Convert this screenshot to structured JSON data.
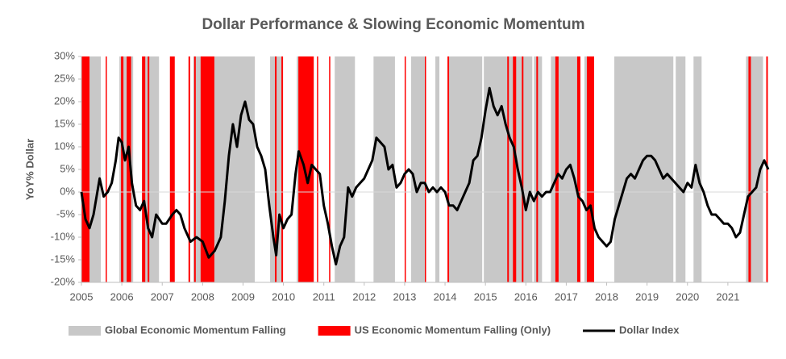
{
  "chart_data": {
    "type": "line",
    "title": "Dollar Performance & Slowing Economic Momentum",
    "y_label": "YoY% Dollar",
    "xlim": [
      2005,
      2022
    ],
    "xticks": [
      2005,
      2006,
      2007,
      2008,
      2009,
      2010,
      2011,
      2012,
      2013,
      2014,
      2015,
      2016,
      2017,
      2018,
      2019,
      2020,
      2021
    ],
    "ylim": [
      -20,
      30
    ],
    "yticks": [
      {
        "value": 30,
        "label": "30%"
      },
      {
        "value": 25,
        "label": "25%"
      },
      {
        "value": 20,
        "label": "20%"
      },
      {
        "value": 15,
        "label": "15%"
      },
      {
        "value": 10,
        "label": "10%"
      },
      {
        "value": 5,
        "label": "5%"
      },
      {
        "value": 0,
        "label": "0%"
      },
      {
        "value": -5,
        "label": "-5%"
      },
      {
        "value": -10,
        "label": "-10%"
      },
      {
        "value": -15,
        "label": "-15%"
      },
      {
        "value": -20,
        "label": "-20%"
      }
    ],
    "bands": [
      {
        "name": "Global Economic Momentum Falling",
        "color": "#c8c8c8",
        "ranges": [
          [
            2005.2,
            2005.48
          ],
          [
            2005.94,
            2006.28
          ],
          [
            2006.5,
            2006.92
          ],
          [
            2007.77,
            2007.97
          ],
          [
            2008.27,
            2009.29
          ],
          [
            2009.67,
            2009.95
          ],
          [
            2010.33,
            2010.75
          ],
          [
            2011.27,
            2011.77
          ],
          [
            2012.23,
            2012.76
          ],
          [
            2013.16,
            2013.5
          ],
          [
            2013.76,
            2013.86
          ],
          [
            2014.08,
            2014.92
          ],
          [
            2014.96,
            2016.16
          ],
          [
            2016.2,
            2016.4
          ],
          [
            2016.62,
            2017.35
          ],
          [
            2017.45,
            2017.6
          ],
          [
            2018.19,
            2019.65
          ],
          [
            2019.71,
            2019.95
          ],
          [
            2020.15,
            2020.35
          ],
          [
            2021.45,
            2021.87
          ]
        ]
      },
      {
        "name": "US Economic Momentum Falling (Only)",
        "color": "#ff0000",
        "ranges": [
          [
            2005.0,
            2005.2
          ],
          [
            2005.6,
            2005.63
          ],
          [
            2005.98,
            2006.04
          ],
          [
            2006.12,
            2006.23
          ],
          [
            2006.5,
            2006.58
          ],
          [
            2006.64,
            2006.68
          ],
          [
            2007.19,
            2007.31
          ],
          [
            2007.65,
            2007.69
          ],
          [
            2007.79,
            2007.83
          ],
          [
            2007.95,
            2008.29
          ],
          [
            2009.79,
            2009.83
          ],
          [
            2009.95,
            2009.99
          ],
          [
            2010.37,
            2010.75
          ],
          [
            2010.83,
            2010.85
          ],
          [
            2011.13,
            2011.15
          ],
          [
            2013.0,
            2013.03
          ],
          [
            2013.5,
            2013.52
          ],
          [
            2014.06,
            2014.1
          ],
          [
            2015.54,
            2015.58
          ],
          [
            2015.68,
            2015.76
          ],
          [
            2015.9,
            2015.94
          ],
          [
            2016.26,
            2016.3
          ],
          [
            2016.73,
            2016.81
          ],
          [
            2017.27,
            2017.35
          ],
          [
            2017.51,
            2017.69
          ],
          [
            2021.51,
            2021.57
          ],
          [
            2021.95,
            2021.99
          ]
        ]
      }
    ],
    "x": [
      2005.0,
      2005.1,
      2005.2,
      2005.3,
      2005.45,
      2005.55,
      2005.65,
      2005.75,
      2005.85,
      2005.92,
      2006.0,
      2006.08,
      2006.17,
      2006.25,
      2006.35,
      2006.45,
      2006.55,
      2006.65,
      2006.75,
      2006.85,
      2007.0,
      2007.1,
      2007.25,
      2007.35,
      2007.45,
      2007.55,
      2007.7,
      2007.85,
      2008.0,
      2008.15,
      2008.3,
      2008.45,
      2008.55,
      2008.65,
      2008.75,
      2008.85,
      2008.95,
      2009.05,
      2009.15,
      2009.25,
      2009.35,
      2009.45,
      2009.55,
      2009.65,
      2009.75,
      2009.82,
      2009.9,
      2010.0,
      2010.1,
      2010.2,
      2010.3,
      2010.38,
      2010.5,
      2010.6,
      2010.7,
      2010.8,
      2010.9,
      2011.0,
      2011.1,
      2011.2,
      2011.3,
      2011.4,
      2011.5,
      2011.6,
      2011.7,
      2011.8,
      2011.9,
      2012.0,
      2012.1,
      2012.2,
      2012.3,
      2012.4,
      2012.5,
      2012.6,
      2012.7,
      2012.8,
      2012.9,
      2013.0,
      2013.1,
      2013.2,
      2013.3,
      2013.4,
      2013.5,
      2013.6,
      2013.7,
      2013.8,
      2013.9,
      2014.0,
      2014.1,
      2014.2,
      2014.3,
      2014.4,
      2014.5,
      2014.6,
      2014.7,
      2014.8,
      2014.9,
      2015.0,
      2015.1,
      2015.2,
      2015.3,
      2015.4,
      2015.5,
      2015.6,
      2015.7,
      2015.8,
      2015.9,
      2016.0,
      2016.1,
      2016.2,
      2016.3,
      2016.4,
      2016.5,
      2016.6,
      2016.7,
      2016.8,
      2016.9,
      2017.0,
      2017.1,
      2017.2,
      2017.3,
      2017.4,
      2017.5,
      2017.6,
      2017.7,
      2017.8,
      2017.9,
      2018.0,
      2018.1,
      2018.2,
      2018.3,
      2018.4,
      2018.5,
      2018.6,
      2018.7,
      2018.8,
      2018.9,
      2019.0,
      2019.1,
      2019.2,
      2019.3,
      2019.4,
      2019.5,
      2019.6,
      2019.7,
      2019.8,
      2019.9,
      2020.0,
      2020.1,
      2020.2,
      2020.3,
      2020.4,
      2020.5,
      2020.6,
      2020.7,
      2020.8,
      2020.9,
      2021.0,
      2021.1,
      2021.2,
      2021.3,
      2021.4,
      2021.5,
      2021.6,
      2021.7,
      2021.8,
      2021.9,
      2022.0
    ],
    "series": [
      {
        "name": "Dollar Index",
        "color": "#000000",
        "values": [
          0,
          -6,
          -8,
          -5,
          3,
          -1,
          0,
          2,
          7,
          12,
          11,
          7,
          10,
          2,
          -3,
          -4,
          -2,
          -8,
          -10,
          -5,
          -7,
          -7,
          -5,
          -4,
          -5,
          -8,
          -11,
          -10,
          -11,
          -14.5,
          -13,
          -10,
          -2,
          8,
          15,
          10,
          17,
          20,
          16,
          15,
          10,
          8,
          5,
          -3,
          -10,
          -14,
          -5,
          -8,
          -6,
          -5,
          4,
          9,
          6,
          2,
          6,
          5,
          4,
          -3,
          -7,
          -12,
          -16,
          -12,
          -10,
          1,
          -1,
          1,
          2,
          3,
          5,
          7,
          12,
          11,
          10,
          5,
          6,
          1,
          2,
          4,
          5,
          4,
          0,
          2,
          2,
          0,
          1,
          0,
          1,
          0,
          -3,
          -3,
          -4,
          -2,
          0,
          2,
          7,
          8,
          12,
          18,
          23,
          19,
          17,
          19,
          15,
          12,
          10,
          5,
          1,
          -4,
          0,
          -2,
          0,
          -1,
          0,
          0,
          2,
          4,
          3,
          5,
          6,
          3,
          -1,
          -2,
          -4,
          -3,
          -8,
          -10,
          -11,
          -12,
          -11,
          -6,
          -3,
          0,
          3,
          4,
          3,
          5,
          7,
          8,
          8,
          7,
          5,
          3,
          4,
          3,
          2,
          1,
          0,
          2,
          1,
          6,
          2,
          0,
          -3,
          -5,
          -5,
          -6,
          -7,
          -7,
          -8,
          -10,
          -9,
          -5,
          -1,
          0,
          1,
          5,
          7,
          5
        ]
      }
    ]
  }
}
